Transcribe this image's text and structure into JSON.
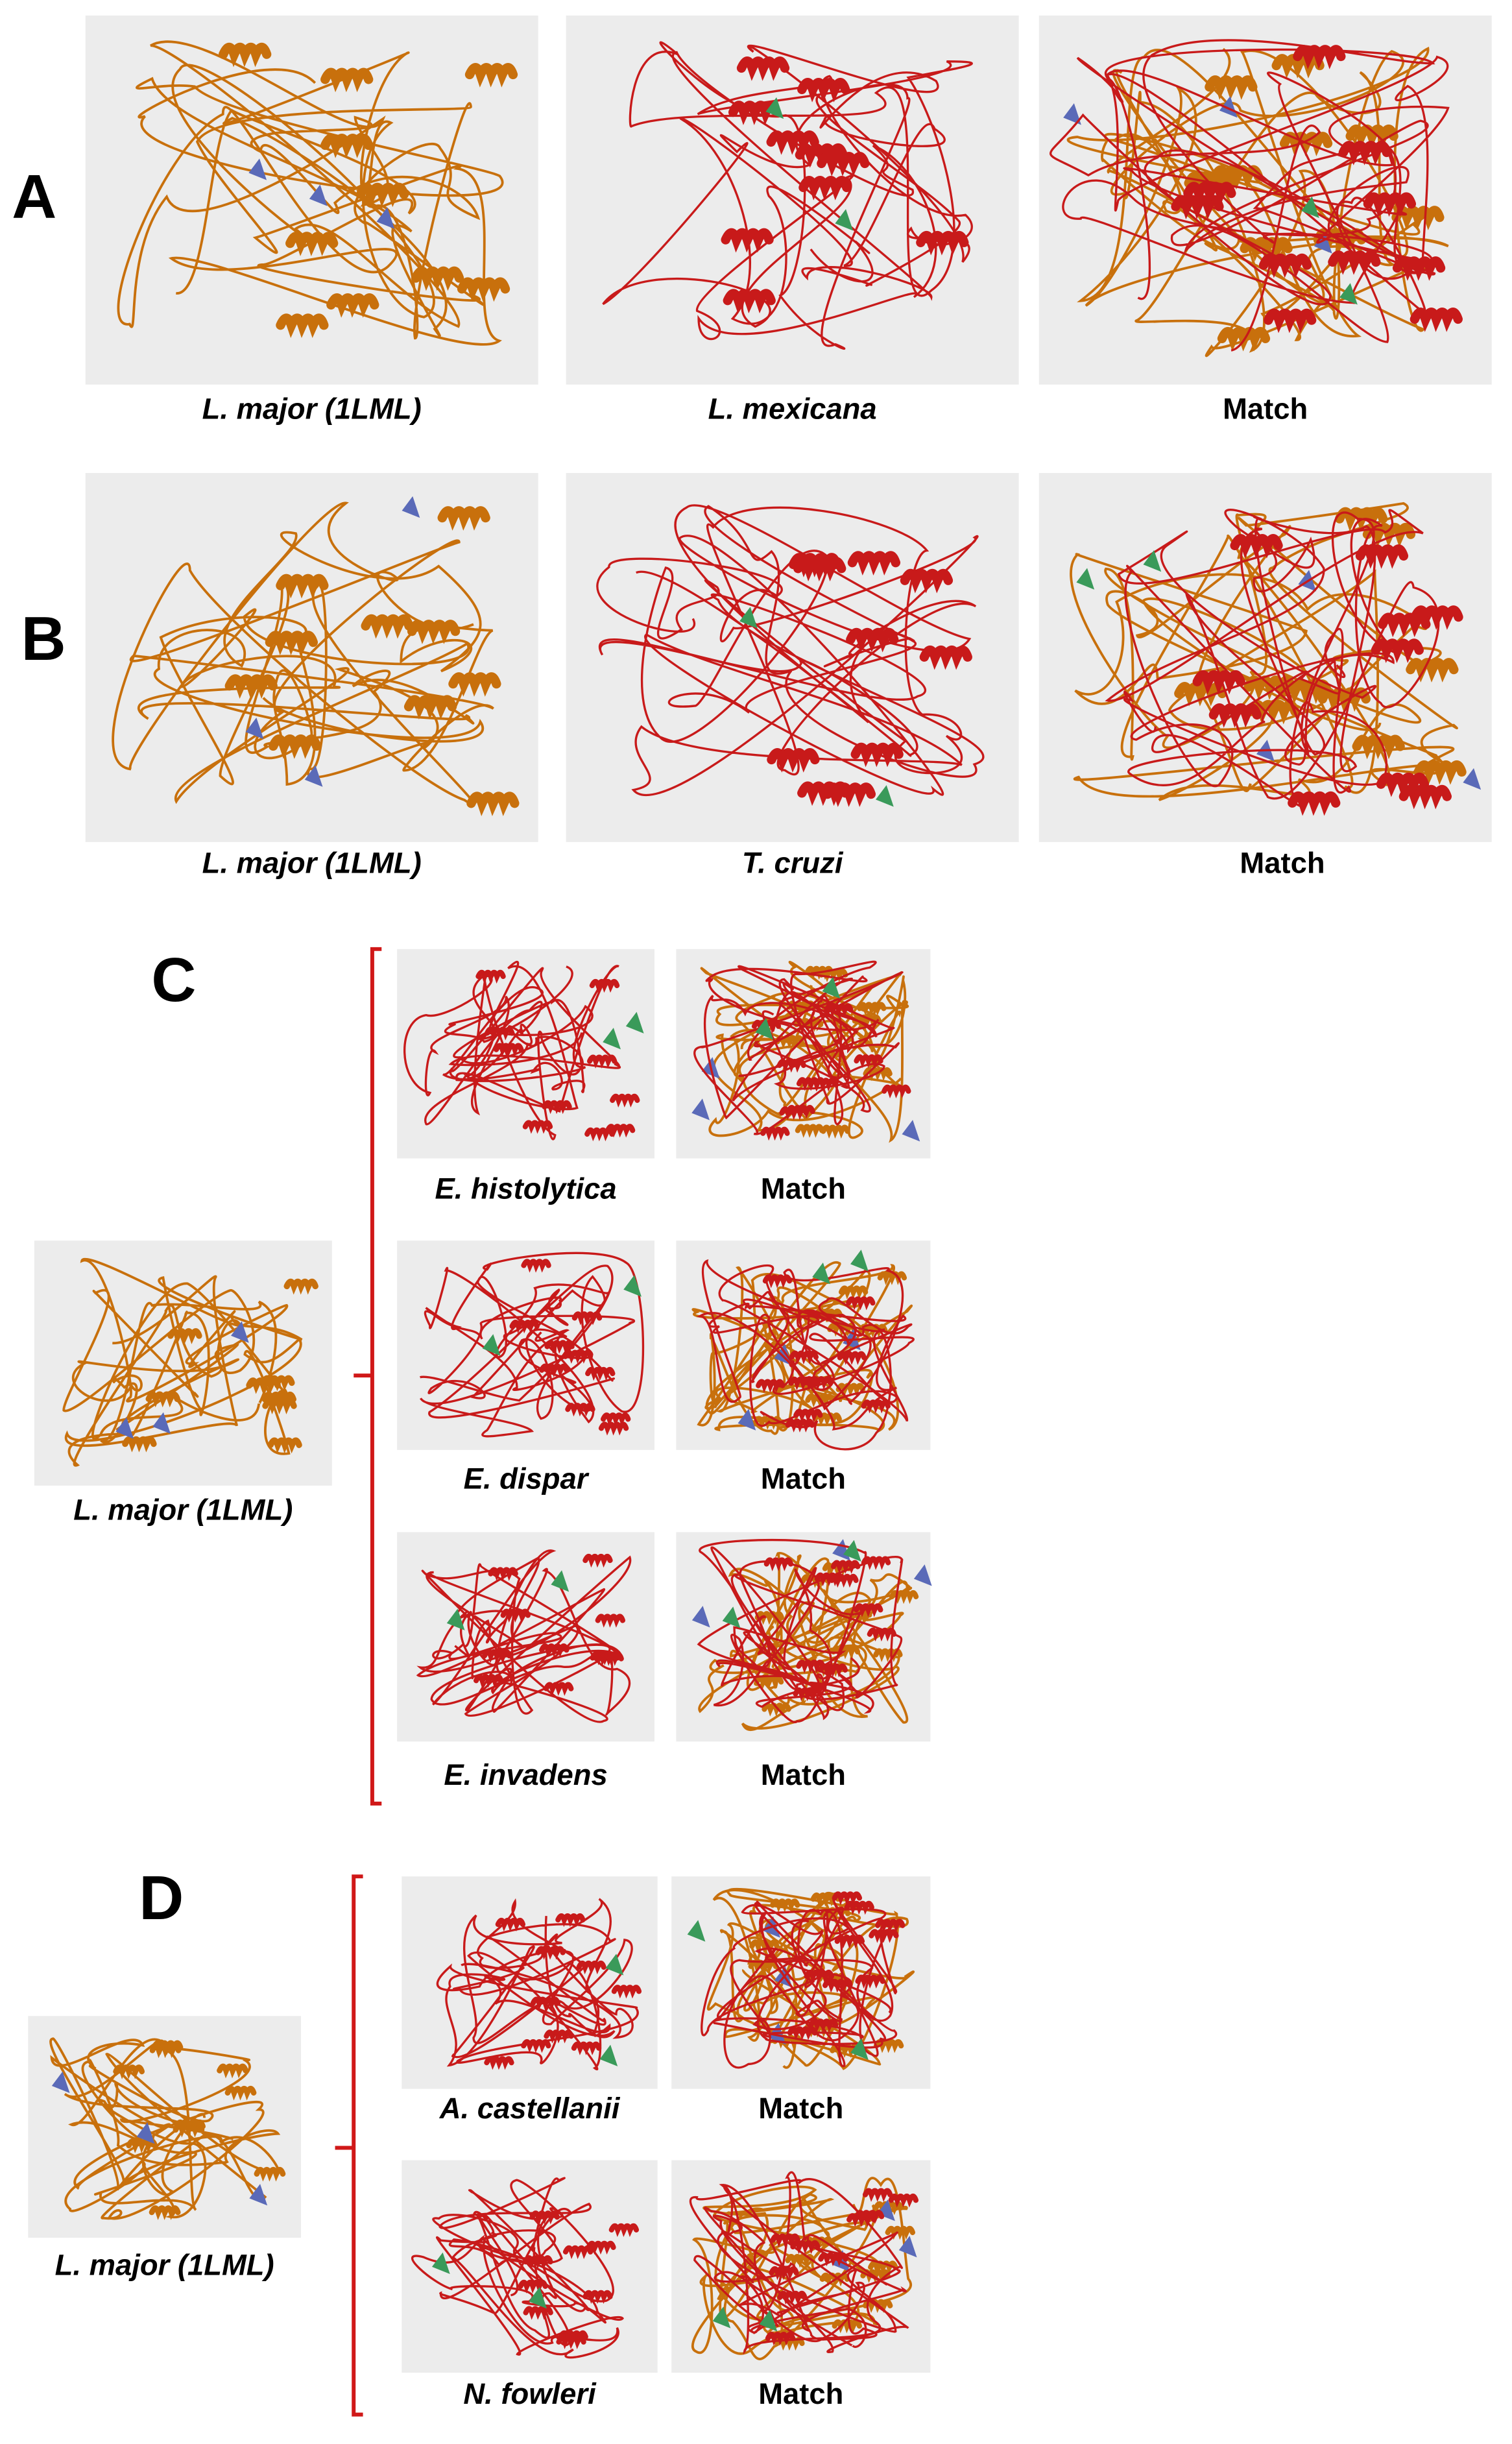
{
  "panels": [
    {
      "label": "A",
      "structures": [
        "L. major (1LML)",
        "L. mexicana",
        "Match"
      ]
    },
    {
      "label": "B",
      "structures": [
        "L. major (1LML)",
        "T. cruzi",
        "Match"
      ]
    },
    {
      "label": "C",
      "reference": "L. major (1LML)",
      "rows": [
        [
          "E. histolytica",
          "Match"
        ],
        [
          "E. dispar",
          "Match"
        ],
        [
          "E. invadens",
          "Match"
        ]
      ]
    },
    {
      "label": "D",
      "reference": "L. major (1LML)",
      "rows": [
        [
          "A. castellanii",
          "Match"
        ],
        [
          "N. fowleri",
          "Match"
        ]
      ]
    }
  ]
}
